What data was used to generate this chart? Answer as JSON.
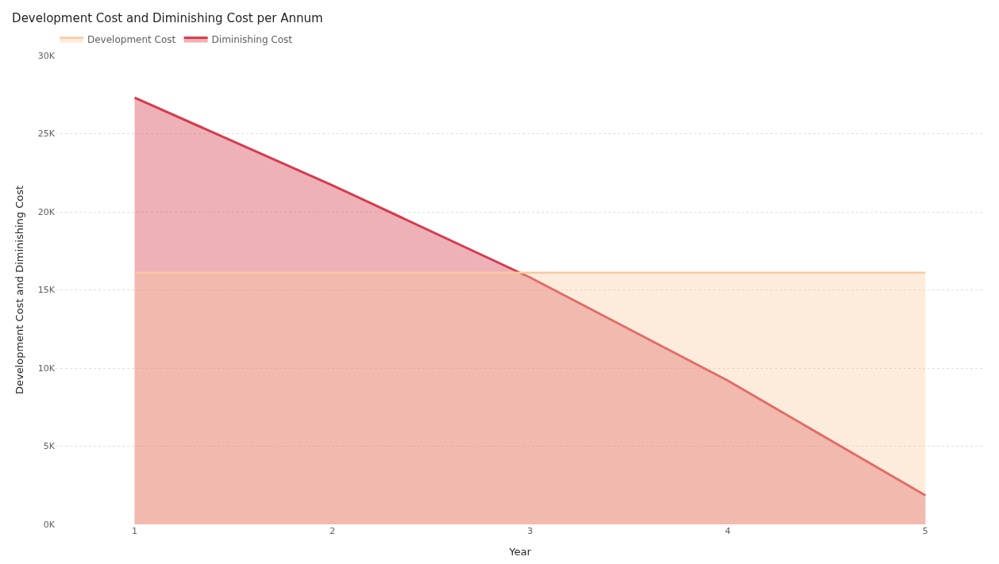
{
  "chart_data": {
    "type": "area",
    "title": "Development Cost and Diminishing Cost per Annum",
    "xlabel": "Year",
    "ylabel": "Development Cost and Diminishing Cost",
    "x": [
      1,
      2,
      3,
      4,
      5
    ],
    "series": [
      {
        "name": "Development Cost",
        "color": "#f8c99c",
        "values": [
          16.1,
          16.1,
          16.1,
          16.1,
          16.1
        ]
      },
      {
        "name": "Diminishing Cost",
        "color": "#d63b4d",
        "values": [
          27.3,
          21.7,
          15.8,
          9.2,
          1.85
        ]
      }
    ],
    "xlim": [
      0.6,
      5.3
    ],
    "xticks": [
      1,
      2,
      3,
      4,
      5
    ],
    "ylim": [
      0,
      30
    ],
    "yticks": [
      {
        "value": 0,
        "label": "0K"
      },
      {
        "value": 5,
        "label": "5K"
      },
      {
        "value": 10,
        "label": "10K"
      },
      {
        "value": 15,
        "label": "15K"
      },
      {
        "value": 20,
        "label": "20K"
      },
      {
        "value": 25,
        "label": "25K"
      },
      {
        "value": 30,
        "label": "30K"
      }
    ],
    "grid": "y",
    "legend": "top left",
    "marker": "none",
    "line_style": "solid"
  }
}
